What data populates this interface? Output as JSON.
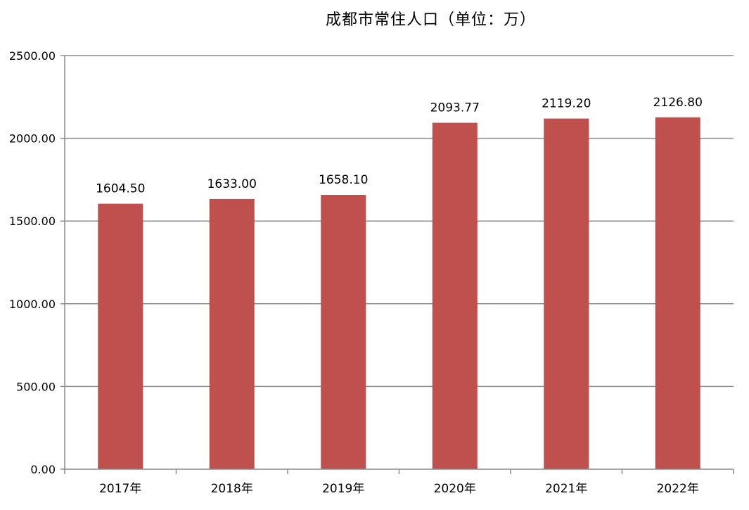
{
  "chart_data": {
    "type": "bar",
    "title": "成都市常住人口（单位：万）",
    "categories": [
      "2017年",
      "2018年",
      "2019年",
      "2020年",
      "2021年",
      "2022年"
    ],
    "values": [
      1604.5,
      1633.0,
      1658.1,
      2093.77,
      2119.2,
      2126.8
    ],
    "value_labels": [
      "1604.50",
      "1633.00",
      "1658.10",
      "2093.77",
      "2119.20",
      "2126.80"
    ],
    "ylim": [
      0,
      2500
    ],
    "yticks": [
      "0.00",
      "500.00",
      "1000.00",
      "1500.00",
      "2000.00",
      "2500.00"
    ],
    "ytick_values": [
      0,
      500,
      1000,
      1500,
      2000,
      2500
    ],
    "grid": true,
    "legend": "none",
    "bar_color": "#c0504d",
    "grid_color": "#8c8c8c"
  }
}
